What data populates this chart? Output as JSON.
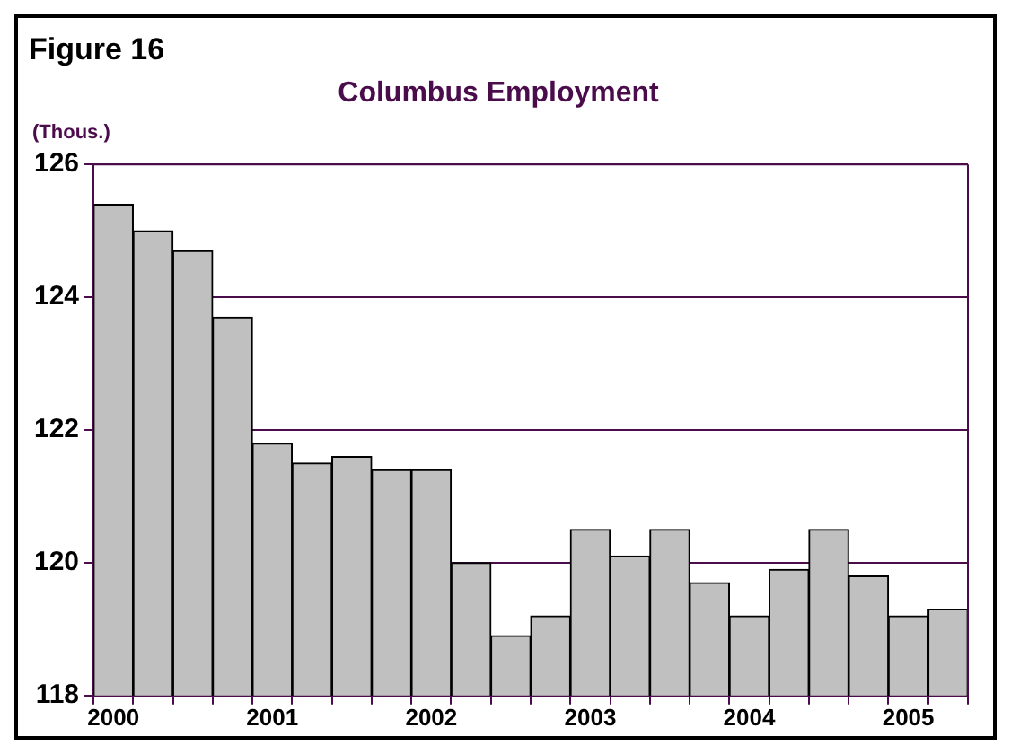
{
  "chart_data": {
    "type": "bar",
    "title": "Figure 16",
    "subtitle": "Columbus Employment",
    "ylabel": "(Thous.)",
    "categories": [
      "2000",
      null,
      null,
      null,
      "2001",
      null,
      null,
      null,
      "2002",
      null,
      null,
      null,
      "2003",
      null,
      null,
      null,
      "2004",
      null,
      null,
      null,
      "2005",
      null
    ],
    "values": [
      125.4,
      125.0,
      124.7,
      123.7,
      121.8,
      121.5,
      121.6,
      121.4,
      121.4,
      120.0,
      118.9,
      119.2,
      120.5,
      120.1,
      120.5,
      119.7,
      119.2,
      119.9,
      120.5,
      119.8,
      119.2,
      119.3
    ],
    "color": "#c0c0c0",
    "ylim": [
      118,
      126
    ],
    "yticks": [
      118,
      120,
      122,
      124,
      126
    ],
    "grid": "y",
    "legend": false
  }
}
